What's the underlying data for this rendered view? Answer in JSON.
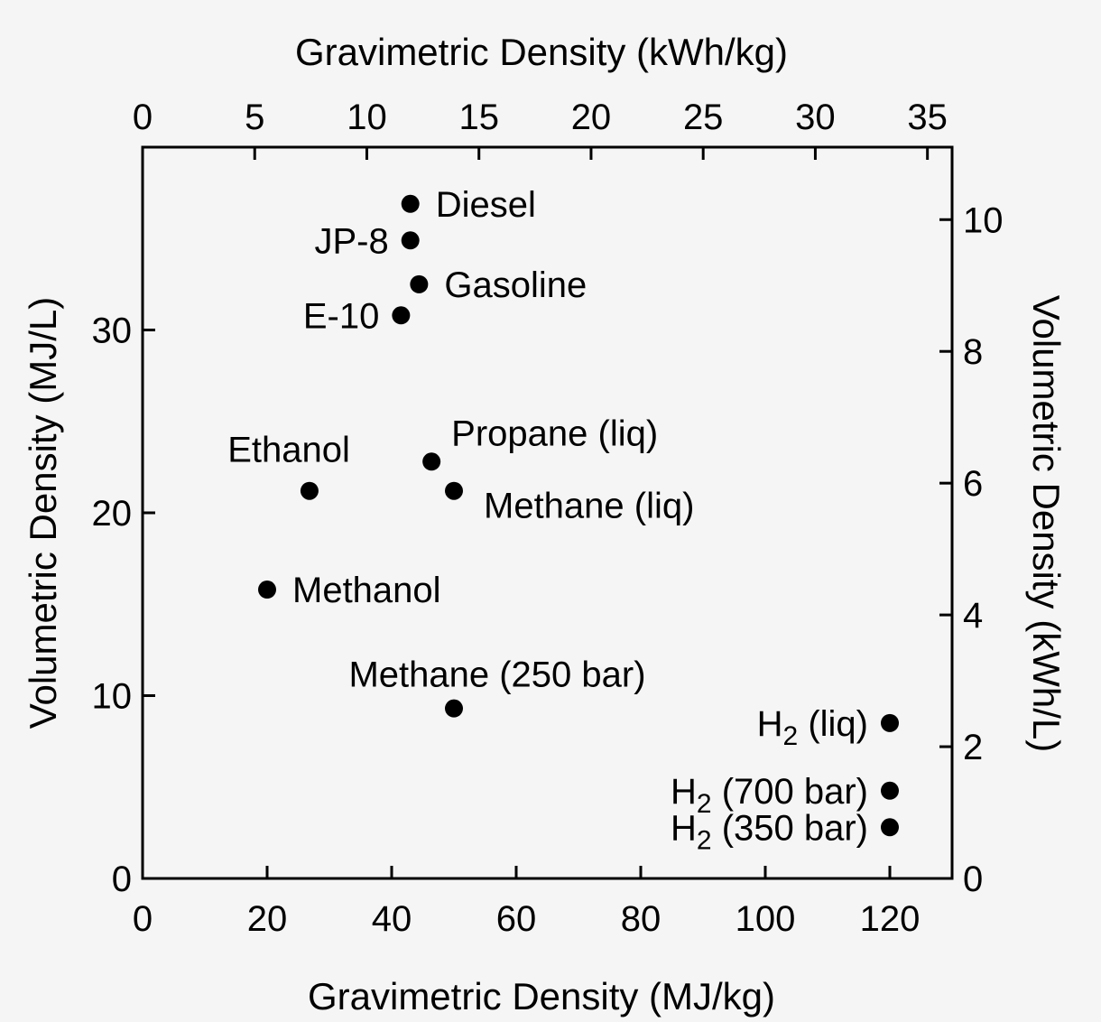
{
  "chart_data": {
    "type": "scatter",
    "x_bottom": {
      "label": "Gravimetric Density (MJ/kg)",
      "range": [
        0,
        130
      ],
      "ticks": [
        0,
        20,
        40,
        60,
        80,
        100,
        120
      ]
    },
    "x_top": {
      "label": "Gravimetric Density (kWh/kg)",
      "range": [
        0,
        36.1
      ],
      "ticks": [
        0,
        5,
        10,
        15,
        20,
        25,
        30,
        35
      ]
    },
    "y_left": {
      "label": "Volumetric Density (MJ/L)",
      "range": [
        0,
        40
      ],
      "ticks": [
        0,
        10,
        20,
        30
      ]
    },
    "y_right": {
      "label": "Volumetric Density (kWh/L)",
      "range": [
        0,
        11.1
      ],
      "ticks": [
        0,
        2,
        4,
        6,
        8,
        10
      ]
    },
    "points": [
      {
        "name": "Diesel",
        "x": 43,
        "y": 36.9,
        "label_pos": "right"
      },
      {
        "name": "JP-8",
        "x": 43,
        "y": 34.9,
        "label_pos": "left"
      },
      {
        "name": "Gasoline",
        "x": 44.4,
        "y": 32.5,
        "label_pos": "right"
      },
      {
        "name": "E-10",
        "x": 41.5,
        "y": 30.8,
        "label_pos": "left"
      },
      {
        "name": "Propane (liq)",
        "x": 46.4,
        "y": 22.8,
        "label_pos": "above-right"
      },
      {
        "name": "Ethanol",
        "x": 26.8,
        "y": 21.2,
        "label_pos": "above-left"
      },
      {
        "name": "Methane (liq)",
        "x": 50,
        "y": 21.2,
        "label_pos": "below-right"
      },
      {
        "name": "Methanol",
        "x": 20,
        "y": 15.8,
        "label_pos": "right"
      },
      {
        "name": "Methane (250 bar)",
        "x": 50,
        "y": 9.3,
        "label_pos": "above"
      },
      {
        "name": "H2 (liq)",
        "display": [
          "H",
          "2",
          " (liq)"
        ],
        "x": 120,
        "y": 8.5,
        "label_pos": "left"
      },
      {
        "name": "H2 (700 bar)",
        "display": [
          "H",
          "2",
          " (700 bar)"
        ],
        "x": 120,
        "y": 4.8,
        "label_pos": "left"
      },
      {
        "name": "H2 (350 bar)",
        "display": [
          "H",
          "2",
          " (350 bar)"
        ],
        "x": 120,
        "y": 2.8,
        "label_pos": "left"
      }
    ]
  }
}
